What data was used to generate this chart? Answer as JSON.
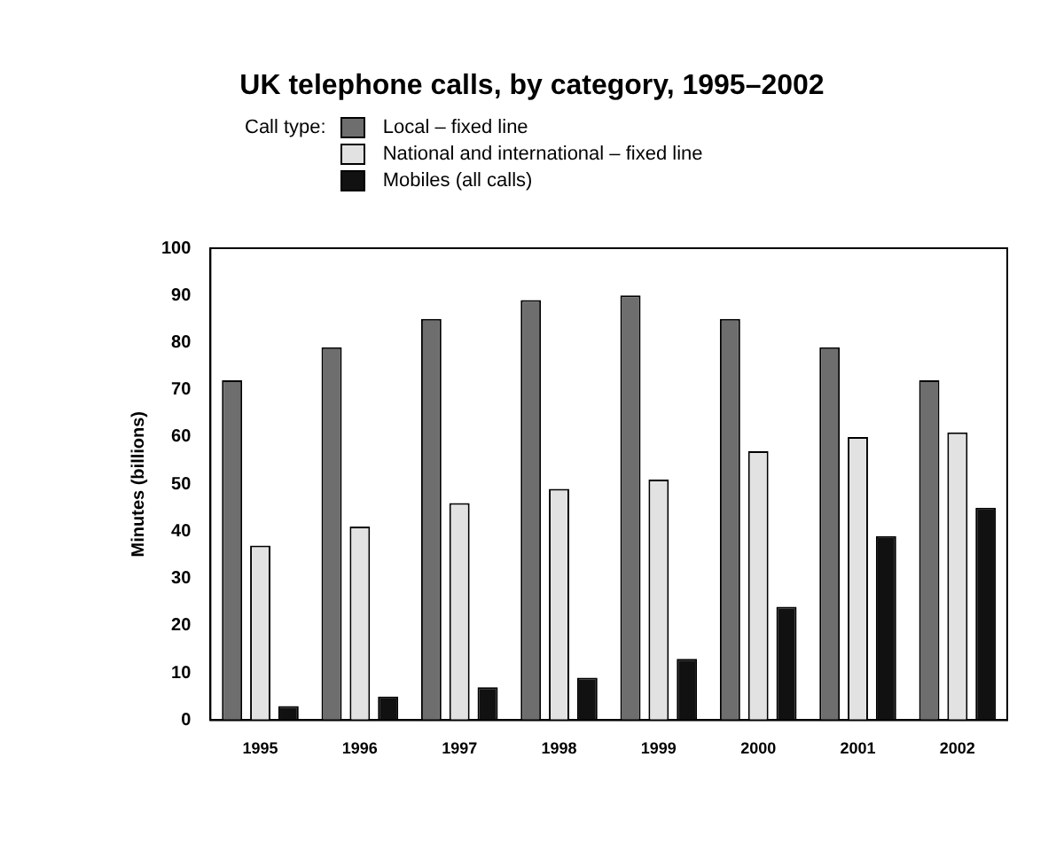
{
  "chart_data": {
    "type": "bar",
    "title": "UK telephone calls, by category, 1995–2002",
    "legend_title": "Call type:",
    "ylabel": "Minutes (billions)",
    "categories": [
      "1995",
      "1996",
      "1997",
      "1998",
      "1999",
      "2000",
      "2001",
      "2002"
    ],
    "series": [
      {
        "name": "Local – fixed line",
        "color": "#6e6e6e",
        "values": [
          72,
          79,
          85,
          89,
          90,
          85,
          79,
          72
        ]
      },
      {
        "name": "National and international – fixed line",
        "color": "#e2e2e2",
        "values": [
          37,
          41,
          46,
          49,
          51,
          57,
          60,
          61
        ]
      },
      {
        "name": "Mobiles (all calls)",
        "color": "#111111",
        "values": [
          3,
          5,
          7,
          9,
          13,
          24,
          39,
          45
        ]
      }
    ],
    "ylim": [
      0,
      100
    ],
    "yticks": [
      0,
      10,
      20,
      30,
      40,
      50,
      60,
      70,
      80,
      90,
      100
    ],
    "grid": false,
    "legend": "top left"
  }
}
